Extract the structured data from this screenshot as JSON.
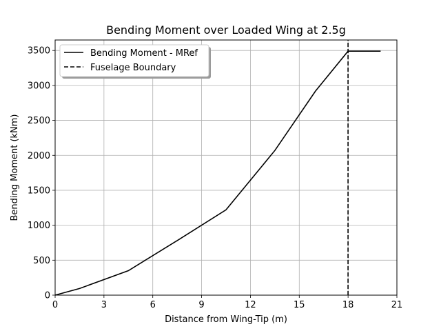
{
  "chart_data": {
    "type": "line",
    "title": "Bending Moment over Loaded Wing at 2.5g",
    "xlabel": "Distance from Wing-Tip (m)",
    "ylabel": "Bending Moment (kNm)",
    "xlim": [
      0,
      21
    ],
    "ylim": [
      0,
      3650
    ],
    "xticks": [
      0,
      3,
      6,
      9,
      12,
      15,
      18,
      21
    ],
    "yticks": [
      0,
      500,
      1000,
      1500,
      2000,
      2500,
      3000,
      3500
    ],
    "grid": true,
    "legend_position": "top-left",
    "series": [
      {
        "name": "Bending Moment - MRef",
        "style": "solid",
        "color": "#000000",
        "x": [
          0,
          1.5,
          4.5,
          7.5,
          10.5,
          13.5,
          16.0,
          18.0,
          20.0
        ],
        "y": [
          0,
          95,
          350,
          780,
          1220,
          2070,
          2920,
          3490,
          3490
        ]
      },
      {
        "name": "Fuselage Boundary",
        "style": "dashed",
        "color": "#000000",
        "x": [
          18,
          18
        ],
        "y": [
          0,
          3650
        ]
      }
    ]
  }
}
